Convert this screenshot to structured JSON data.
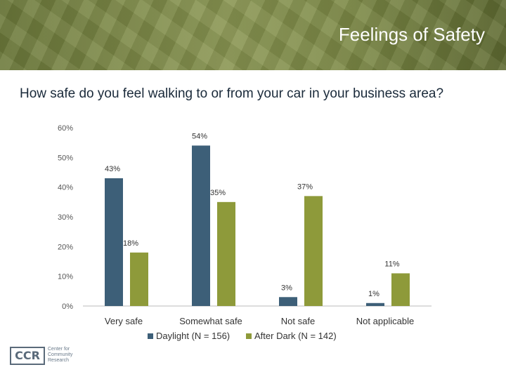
{
  "header": {
    "title": "Feelings of Safety"
  },
  "question": "How safe do you feel walking to or from your car in your business area?",
  "colors": {
    "daylight": "#3d5f78",
    "after_dark": "#8e9a3a"
  },
  "chart_data": {
    "type": "bar",
    "categories": [
      "Very safe",
      "Somewhat safe",
      "Not safe",
      "Not applicable"
    ],
    "series": [
      {
        "name": "Daylight (N = 156)",
        "values": [
          43,
          54,
          3,
          1
        ],
        "labels": [
          "43%",
          "54%",
          "3%",
          "1%"
        ]
      },
      {
        "name": "After Dark (N = 142)",
        "values": [
          18,
          35,
          37,
          11
        ],
        "labels": [
          "18%",
          "35%",
          "37%",
          "11%"
        ]
      }
    ],
    "yticks": [
      "0%",
      "10%",
      "20%",
      "30%",
      "40%",
      "50%",
      "60%"
    ],
    "ylim": [
      0,
      60
    ],
    "legend": "bottom",
    "grid": false
  },
  "logo": {
    "abbr": "CCR",
    "line1": "Center for",
    "line2": "Community",
    "line3": "Research"
  }
}
